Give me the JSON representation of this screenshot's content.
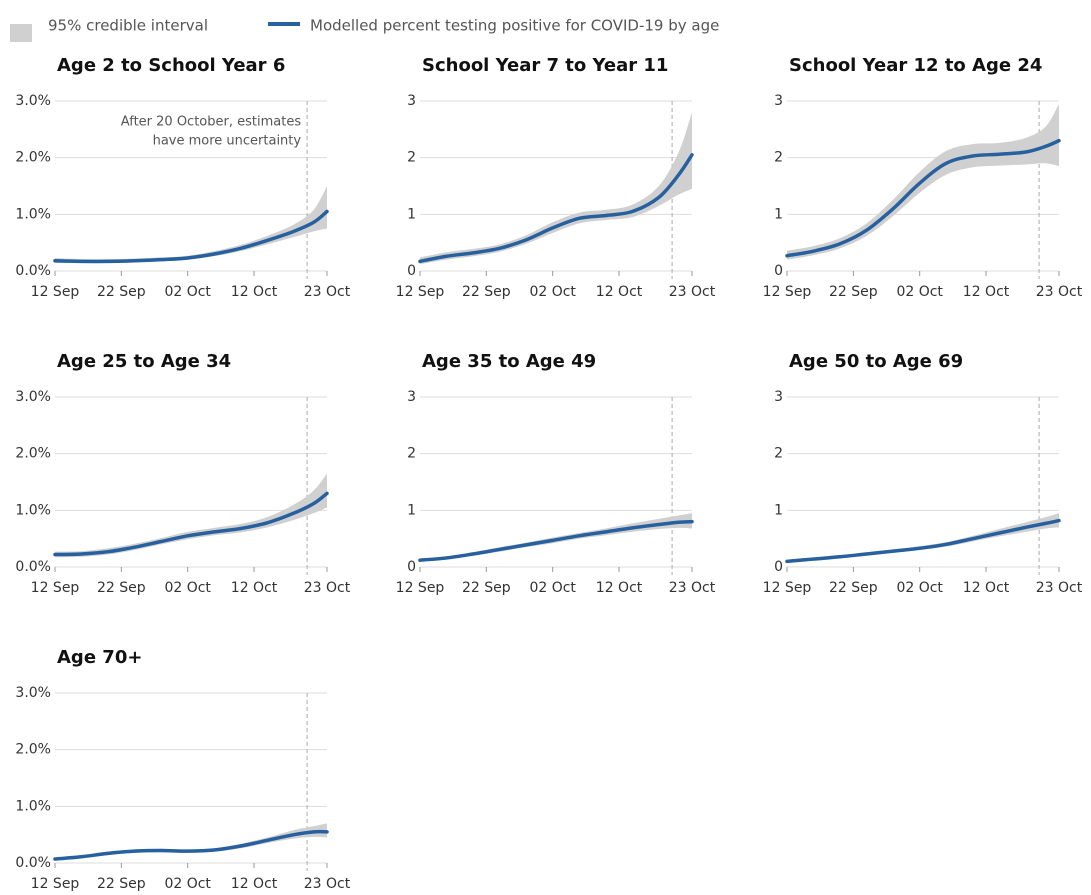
{
  "legend": {
    "band": "95% credible interval",
    "line": "Modelled percent testing positive for COVID-19 by age",
    "band_color": "#d0d0d0",
    "line_color": "#27609f"
  },
  "chart_data": [
    {
      "type": "line",
      "title": "Age 2 to School Year 6",
      "x": [
        "12 Sep",
        "16 Sep",
        "20 Sep",
        "24 Sep",
        "28 Sep",
        "02 Oct",
        "06 Oct",
        "10 Oct",
        "14 Oct",
        "18 Oct",
        "21 Oct",
        "23 Oct"
      ],
      "values": [
        0.18,
        0.17,
        0.17,
        0.18,
        0.2,
        0.23,
        0.3,
        0.4,
        0.54,
        0.7,
        0.86,
        1.05
      ],
      "lower": [
        0.14,
        0.14,
        0.14,
        0.15,
        0.17,
        0.2,
        0.26,
        0.35,
        0.47,
        0.6,
        0.7,
        0.75
      ],
      "upper": [
        0.23,
        0.21,
        0.21,
        0.22,
        0.24,
        0.27,
        0.35,
        0.46,
        0.62,
        0.82,
        1.08,
        1.5
      ],
      "vline": "20 Oct",
      "annotation": [
        "After 20 October, estimates",
        "have more uncertainty"
      ],
      "xlim": [
        "12 Sep",
        "23 Oct"
      ],
      "xticks": [
        "12 Sep",
        "22 Sep",
        "02 Oct",
        "12 Oct",
        "23 Oct"
      ],
      "ylim": [
        0,
        3
      ],
      "yticks": [
        {
          "value": 0,
          "label": "0.0%"
        },
        {
          "value": 1,
          "label": "1.0%"
        },
        {
          "value": 2,
          "label": "2.0%"
        },
        {
          "value": 3,
          "label": "3.0%"
        }
      ],
      "grid": true
    },
    {
      "type": "line",
      "title": "School Year 7 to Year 11",
      "x": [
        "12 Sep",
        "16 Sep",
        "20 Sep",
        "24 Sep",
        "28 Sep",
        "02 Oct",
        "06 Oct",
        "10 Oct",
        "14 Oct",
        "18 Oct",
        "21 Oct",
        "23 Oct"
      ],
      "values": [
        0.17,
        0.26,
        0.32,
        0.4,
        0.55,
        0.76,
        0.93,
        0.98,
        1.05,
        1.3,
        1.7,
        2.05
      ],
      "lower": [
        0.12,
        0.2,
        0.26,
        0.34,
        0.48,
        0.67,
        0.84,
        0.9,
        0.95,
        1.15,
        1.35,
        1.45
      ],
      "upper": [
        0.24,
        0.33,
        0.39,
        0.47,
        0.63,
        0.86,
        1.03,
        1.08,
        1.17,
        1.5,
        2.1,
        2.8
      ],
      "vline": "20 Oct",
      "xlim": [
        "12 Sep",
        "23 Oct"
      ],
      "xticks": [
        "12 Sep",
        "22 Sep",
        "02 Oct",
        "12 Oct",
        "23 Oct"
      ],
      "ylim": [
        0,
        3
      ],
      "yticks": [
        0,
        1,
        2,
        3
      ],
      "grid": true
    },
    {
      "type": "line",
      "title": "School Year 12 to Age 24",
      "x": [
        "12 Sep",
        "16 Sep",
        "20 Sep",
        "24 Sep",
        "28 Sep",
        "02 Oct",
        "06 Oct",
        "10 Oct",
        "14 Oct",
        "18 Oct",
        "21 Oct",
        "23 Oct"
      ],
      "values": [
        0.27,
        0.35,
        0.48,
        0.72,
        1.1,
        1.55,
        1.9,
        2.03,
        2.06,
        2.1,
        2.2,
        2.3
      ],
      "lower": [
        0.2,
        0.28,
        0.4,
        0.62,
        0.97,
        1.38,
        1.7,
        1.83,
        1.86,
        1.88,
        1.9,
        1.85
      ],
      "upper": [
        0.36,
        0.44,
        0.58,
        0.84,
        1.26,
        1.75,
        2.12,
        2.24,
        2.26,
        2.35,
        2.55,
        2.95
      ],
      "vline": "20 Oct",
      "xlim": [
        "12 Sep",
        "23 Oct"
      ],
      "xticks": [
        "12 Sep",
        "22 Sep",
        "02 Oct",
        "12 Oct",
        "23 Oct"
      ],
      "ylim": [
        0,
        3
      ],
      "yticks": [
        0,
        1,
        2,
        3
      ],
      "grid": true
    },
    {
      "type": "line",
      "title": "Age 25 to Age 34",
      "x": [
        "12 Sep",
        "16 Sep",
        "20 Sep",
        "24 Sep",
        "28 Sep",
        "02 Oct",
        "06 Oct",
        "10 Oct",
        "14 Oct",
        "18 Oct",
        "21 Oct",
        "23 Oct"
      ],
      "values": [
        0.22,
        0.23,
        0.27,
        0.35,
        0.45,
        0.55,
        0.62,
        0.68,
        0.78,
        0.95,
        1.12,
        1.3
      ],
      "lower": [
        0.17,
        0.18,
        0.22,
        0.3,
        0.4,
        0.49,
        0.56,
        0.61,
        0.7,
        0.83,
        0.95,
        1.05
      ],
      "upper": [
        0.27,
        0.28,
        0.33,
        0.41,
        0.51,
        0.62,
        0.69,
        0.76,
        0.88,
        1.1,
        1.35,
        1.65
      ],
      "vline": "20 Oct",
      "xlim": [
        "12 Sep",
        "23 Oct"
      ],
      "xticks": [
        "12 Sep",
        "22 Sep",
        "02 Oct",
        "12 Oct",
        "23 Oct"
      ],
      "ylim": [
        0,
        3
      ],
      "yticks": [
        {
          "value": 0,
          "label": "0.0%"
        },
        {
          "value": 1,
          "label": "1.0%"
        },
        {
          "value": 2,
          "label": "2.0%"
        },
        {
          "value": 3,
          "label": "3.0%"
        }
      ],
      "grid": true
    },
    {
      "type": "line",
      "title": "Age 35 to Age 49",
      "x": [
        "12 Sep",
        "16 Sep",
        "20 Sep",
        "24 Sep",
        "28 Sep",
        "02 Oct",
        "06 Oct",
        "10 Oct",
        "14 Oct",
        "18 Oct",
        "21 Oct",
        "23 Oct"
      ],
      "values": [
        0.12,
        0.16,
        0.23,
        0.31,
        0.39,
        0.47,
        0.55,
        0.62,
        0.69,
        0.75,
        0.79,
        0.8
      ],
      "lower": [
        0.1,
        0.13,
        0.2,
        0.27,
        0.35,
        0.42,
        0.5,
        0.56,
        0.62,
        0.67,
        0.69,
        0.68
      ],
      "upper": [
        0.15,
        0.19,
        0.26,
        0.35,
        0.43,
        0.52,
        0.6,
        0.68,
        0.77,
        0.85,
        0.91,
        0.95
      ],
      "vline": "20 Oct",
      "xlim": [
        "12 Sep",
        "23 Oct"
      ],
      "xticks": [
        "12 Sep",
        "22 Sep",
        "02 Oct",
        "12 Oct",
        "23 Oct"
      ],
      "ylim": [
        0,
        3
      ],
      "yticks": [
        0,
        1,
        2,
        3
      ],
      "grid": true
    },
    {
      "type": "line",
      "title": "Age 50 to Age 69",
      "x": [
        "12 Sep",
        "16 Sep",
        "20 Sep",
        "24 Sep",
        "28 Sep",
        "02 Oct",
        "06 Oct",
        "10 Oct",
        "14 Oct",
        "18 Oct",
        "21 Oct",
        "23 Oct"
      ],
      "values": [
        0.1,
        0.14,
        0.18,
        0.23,
        0.28,
        0.33,
        0.4,
        0.5,
        0.6,
        0.7,
        0.77,
        0.82
      ],
      "lower": [
        0.08,
        0.12,
        0.16,
        0.2,
        0.25,
        0.3,
        0.36,
        0.45,
        0.54,
        0.62,
        0.68,
        0.7
      ],
      "upper": [
        0.13,
        0.17,
        0.21,
        0.26,
        0.31,
        0.37,
        0.44,
        0.55,
        0.67,
        0.79,
        0.88,
        0.95
      ],
      "vline": "20 Oct",
      "xlim": [
        "12 Sep",
        "23 Oct"
      ],
      "xticks": [
        "12 Sep",
        "22 Sep",
        "02 Oct",
        "12 Oct",
        "23 Oct"
      ],
      "ylim": [
        0,
        3
      ],
      "yticks": [
        0,
        1,
        2,
        3
      ],
      "grid": true
    },
    {
      "type": "line",
      "title": "Age 70+",
      "x": [
        "12 Sep",
        "16 Sep",
        "20 Sep",
        "24 Sep",
        "28 Sep",
        "02 Oct",
        "06 Oct",
        "10 Oct",
        "14 Oct",
        "18 Oct",
        "21 Oct",
        "23 Oct"
      ],
      "values": [
        0.07,
        0.11,
        0.17,
        0.21,
        0.22,
        0.21,
        0.23,
        0.3,
        0.4,
        0.5,
        0.55,
        0.55
      ],
      "lower": [
        0.05,
        0.09,
        0.14,
        0.18,
        0.19,
        0.18,
        0.2,
        0.26,
        0.35,
        0.43,
        0.46,
        0.45
      ],
      "upper": [
        0.09,
        0.14,
        0.2,
        0.24,
        0.25,
        0.24,
        0.26,
        0.34,
        0.45,
        0.58,
        0.65,
        0.7
      ],
      "vline": "20 Oct",
      "xlim": [
        "12 Sep",
        "23 Oct"
      ],
      "xticks": [
        "12 Sep",
        "22 Sep",
        "02 Oct",
        "12 Oct",
        "23 Oct"
      ],
      "ylim": [
        0,
        3
      ],
      "yticks": [
        {
          "value": 0,
          "label": "0.0%"
        },
        {
          "value": 1,
          "label": "1.0%"
        },
        {
          "value": 2,
          "label": "2.0%"
        },
        {
          "value": 3,
          "label": "3.0%"
        }
      ],
      "grid": true
    }
  ]
}
